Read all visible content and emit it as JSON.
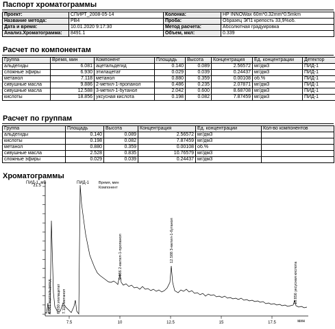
{
  "passport": {
    "title": "Паспорт хроматограммы",
    "rows": [
      [
        "Проект:",
        "СПИРТ_2008-05-14",
        "Колонка:",
        "HP INNOWax 60m*0.32mm*0.5mkm"
      ],
      [
        "Название метода:",
        "PB4",
        "Проба:",
        "Образец ЭП1 крепость 33,9%об."
      ],
      [
        "Дата и время:",
        "10.01.2020 9:17:30",
        "Метод расчета:",
        "Абсолютная градуировка"
      ],
      [
        "Анализ.Хроматограмма:",
        "8491.1",
        "Объем, мкл:",
        "0.339"
      ]
    ]
  },
  "components": {
    "title": "Расчет по компонентам",
    "headers": [
      "Группа",
      "Время, мин",
      "Компонент",
      "Площадь",
      "Высота",
      "Концентрация",
      "Ед. концентрации",
      "Детектор"
    ],
    "rows": [
      [
        "альдегиды",
        "6.081",
        "ацетальдегид",
        "0.140",
        "0.089",
        "2.56572",
        "мг/дм3",
        "ПИД-1"
      ],
      [
        "сложные эфиры",
        "6.930",
        "этилацетат",
        "0.029",
        "0.039",
        "0.24437",
        "мг/дм3",
        "ПИД-1"
      ],
      [
        "метанол",
        "7.118",
        "метанол",
        "0.880",
        "0.359",
        "0.00108",
        "об.%",
        "ПИД-1"
      ],
      [
        "сивушные масла",
        "9.886",
        "2-метил-1-пропанол",
        "0.486",
        "0.235",
        "2.07871",
        "мг/дм3",
        "ПИД-1"
      ],
      [
        "сивушные масла",
        "12.588",
        "3-метил-1-бутанол",
        "2.042",
        "0.600",
        "8.68708",
        "мг/дм3",
        "ПИД-1"
      ],
      [
        "кислоты",
        "18.856",
        "уксусная кислота",
        "0.198",
        "0.082",
        "7.87459",
        "мг/дм3",
        "ПИД-1"
      ]
    ]
  },
  "groups": {
    "title": "Расчет по группам",
    "headers": [
      "Группа",
      "Площадь",
      "Высота",
      "Концентрация",
      "Ед. концентрации",
      "Кол-во компонентов"
    ],
    "rows": [
      [
        "альдегиды",
        "0.140",
        "0.089",
        "2.56572",
        "мг/дм3",
        ""
      ],
      [
        "кислоты",
        "0.198",
        "0.082",
        "7.87459",
        "мг/дм3",
        ""
      ],
      [
        "метанол",
        "0.880",
        "0.359",
        "0.00108",
        "об.%",
        ""
      ],
      [
        "сивушные масла",
        "2.528",
        "0.835",
        "10.76579",
        "мг/дм3",
        ""
      ],
      [
        "сложные эфиры",
        "0.029",
        "0.039",
        "0.24437",
        "мг/дм3",
        ""
      ]
    ]
  },
  "chromatogram": {
    "title": "Хроматограммы",
    "y_label": "ПИД-1, мВ",
    "y_top_tick": "21.5",
    "trace_name": "ПИД-1",
    "legend_time": "Время, мин",
    "legend_component": "Компонент",
    "x_ticks": [
      "7.5",
      "10",
      "12.5",
      "15",
      "17.5"
    ],
    "x_unit": "мин",
    "peak_labels": [
      "6.081 ацетальдегид",
      "6.930 этилацетат",
      "7.118 метанол",
      "9.886 2-метил-1-пропанол",
      "12.588 3-метил-1-бутанол",
      "18.856 уксусная кислота"
    ]
  }
}
